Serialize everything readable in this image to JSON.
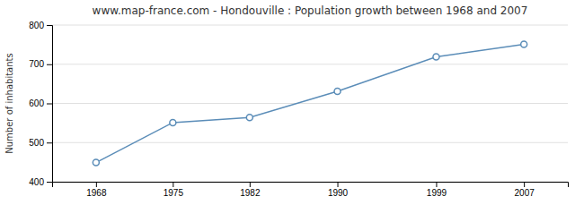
{
  "chart_data": {
    "type": "line",
    "title": "www.map-france.com - Hondouville : Population growth between 1968 and 2007",
    "y_label": "Number of inhabitants",
    "x": [
      1968,
      1975,
      1982,
      1990,
      1999,
      2007
    ],
    "values": [
      449,
      551,
      564,
      631,
      719,
      751
    ],
    "color": "#5b8db8",
    "marker": "circle",
    "xlim": [
      1964,
      2011
    ],
    "xticks": [
      1968,
      1975,
      1982,
      1990,
      1999,
      2007
    ],
    "ylim": [
      400,
      800
    ],
    "yticks": [
      400,
      500,
      600,
      700,
      800
    ],
    "grid": true
  }
}
